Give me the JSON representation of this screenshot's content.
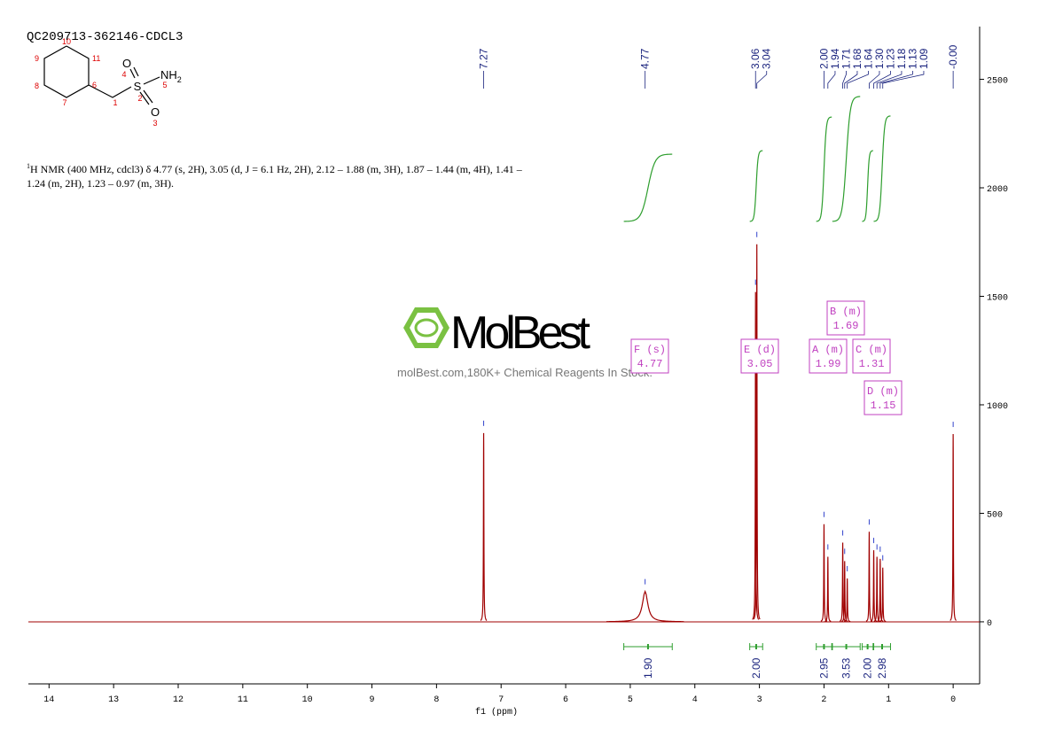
{
  "chart_data": {
    "type": "spectrum",
    "title": "QC209713-362146-CDCL3",
    "description": {
      "sup": "1",
      "main": "H NMR (400 MHz, cdcl3) δ 4.77 (s, 2H), 3.05 (d, J = 6.1 Hz, 2H), 2.12 – 1.88 (m, 3H), 1.87 – 1.44 (m, 4H), 1.41 – 1.24 (m, 2H), 1.23 – 0.97 (m, 3H)."
    },
    "structure": {
      "atoms": [
        "10",
        "9",
        "11",
        "8",
        "6",
        "7",
        "1",
        "4",
        "2",
        "5",
        "3"
      ],
      "o_top": "O",
      "o_bottom": "O",
      "s": "S",
      "nh": "NH",
      "nh_sub": "2"
    },
    "watermark": {
      "brand": "MolBest",
      "slogan": "molBest.com,180K+ Chemical Reagents In Stock."
    },
    "xlabel": "f1 (ppm)",
    "xlim": [
      14.32,
      -0.41
    ],
    "xticks": [
      14,
      13,
      12,
      11,
      10,
      9,
      8,
      7,
      6,
      5,
      4,
      3,
      2,
      1,
      0
    ],
    "ylim": [
      -286,
      2743
    ],
    "yticks": [
      0,
      500,
      1000,
      1500,
      2000,
      2500
    ],
    "color": "#a00000",
    "x": [
      7.27,
      4.77,
      3.06,
      3.04,
      2.0,
      1.94,
      1.71,
      1.68,
      1.64,
      1.3,
      1.23,
      1.18,
      1.13,
      1.09,
      0
    ],
    "values": [
      870,
      140,
      1520,
      1740,
      450,
      300,
      365,
      280,
      200,
      415,
      330,
      300,
      290,
      250,
      865
    ],
    "peak_labels": [
      7.27,
      4.77,
      3.06,
      3.04,
      {
        "value": 2.0,
        "label": "2.00"
      },
      1.94,
      1.71,
      1.68,
      1.64,
      {
        "value": 1.3,
        "label": "1.30"
      },
      1.23,
      1.18,
      1.13,
      1.09,
      {
        "value": 0,
        "label": "-0.00"
      }
    ],
    "integrals": {
      "color": "#2e9e2e",
      "values": [
        1.9,
        2,
        2.95,
        3.53,
        2,
        2.98
      ],
      "value_labels": [
        "1.90",
        "2.00",
        "2.95",
        "3.53",
        "2.00",
        "2.98"
      ],
      "ranges": [
        [
          5.1,
          4.35
        ],
        [
          3.15,
          2.95
        ],
        [
          2.12,
          1.88
        ],
        [
          1.87,
          1.44
        ],
        [
          1.41,
          1.24
        ],
        [
          1.23,
          0.97
        ]
      ]
    },
    "multiplets": [
      {
        "label": "F (s)",
        "shift": 4.77
      },
      {
        "label": "E (d)",
        "shift": 3.05
      },
      {
        "label": "A (m)",
        "shift": 1.99
      },
      {
        "label": "B (m)",
        "shift": 1.69
      },
      {
        "label": "C (m)",
        "shift": 1.31
      },
      {
        "label": "D (m)",
        "shift": 1.15
      }
    ]
  }
}
